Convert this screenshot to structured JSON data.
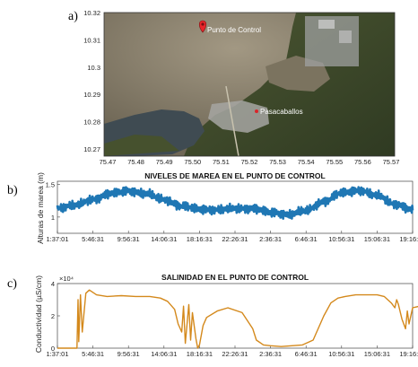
{
  "panel_labels": [
    "a)",
    "b)",
    "c)"
  ],
  "map": {
    "markers": [
      {
        "label": "Punto de Control",
        "lon": 75.511,
        "lat": 10.312,
        "icon": "map-pin-icon",
        "color": "#e8262b"
      },
      {
        "label": "Pasacaballos",
        "lon": 75.527,
        "lat": 10.281,
        "icon": "dot-icon",
        "color": "#d9262b"
      }
    ],
    "x_ticks": [
      "75.47",
      "75.48",
      "75.49",
      "75.50",
      "75.51",
      "75.52",
      "75.53",
      "75.54",
      "75.55",
      "75.56",
      "75.57"
    ],
    "y_ticks": [
      "10.32",
      "10.31",
      "10.3",
      "10.29",
      "10.28",
      "10.27"
    ],
    "colors": {
      "water": "#8a7f6a",
      "land": "#3f4a2c",
      "urban": "#9fa0a0"
    }
  },
  "chart_data": [
    {
      "type": "line",
      "title": "NIVELES DE MAREA EN EL PUNTO DE CONTROL",
      "ylabel": "Alturas de marea (m)",
      "x_ticks": [
        "1:37:01",
        "5:46:31",
        "9:56:31",
        "14:06:31",
        "18:16:31",
        "22:26:31",
        "2:36:31",
        "6:46:31",
        "10:56:31",
        "15:06:31",
        "19:16:31"
      ],
      "y_ticks": [
        "1",
        "1.5"
      ],
      "ylim": [
        0.75,
        1.55
      ],
      "color": "#1f77b4",
      "series": [
        {
          "x": [
            0,
            0.5,
            1,
            1.5,
            2,
            2.5,
            3,
            3.5,
            4,
            4.5,
            5,
            5.5,
            6,
            6.5,
            7,
            7.5,
            8,
            8.5,
            9,
            9.5,
            10,
            10.5,
            11
          ],
          "values": [
            1.14,
            1.18,
            1.27,
            1.36,
            1.4,
            1.36,
            1.27,
            1.17,
            1.12,
            1.11,
            1.13,
            1.13,
            1.07,
            1.04,
            1.1,
            1.24,
            1.37,
            1.41,
            1.33,
            1.2,
            1.11,
            1.09,
            1.12
          ]
        }
      ]
    },
    {
      "type": "line",
      "title": "SALINIDAD EN EL PUNTO DE CONTROL",
      "ylabel": "Conductividad (µS/cm)",
      "y_multiplier": "×10⁴",
      "x_ticks": [
        "1:37:01",
        "5:46:31",
        "9:56:31",
        "14:06:31",
        "18:16:31",
        "22:26:31",
        "2:36:31",
        "6:46:31",
        "10:56:31",
        "15:06:31",
        "19:16:31"
      ],
      "y_ticks": [
        "0",
        "2",
        "4"
      ],
      "ylim": [
        0,
        4
      ],
      "color": "#d4891c",
      "series": [
        {
          "x": [
            0,
            0.3,
            0.55,
            0.58,
            0.6,
            0.65,
            0.7,
            0.8,
            0.9,
            1.1,
            1.4,
            1.8,
            2.2,
            2.6,
            2.9,
            3.1,
            3.3,
            3.4,
            3.5,
            3.55,
            3.6,
            3.7,
            3.75,
            3.8,
            3.9,
            3.95,
            4.0,
            4.1,
            4.2,
            4.5,
            4.8,
            5.2,
            5.5,
            5.6,
            5.8,
            6.0,
            6.3,
            6.6,
            6.9,
            7.2,
            7.5,
            7.7,
            7.9,
            8.1,
            8.4,
            8.7,
            9.0,
            9.2,
            9.4,
            9.5,
            9.55,
            9.6,
            9.7,
            9.8,
            9.85,
            9.9,
            10.0,
            10.2,
            10.4,
            10.6,
            10.8,
            11.0
          ],
          "values": [
            0.0,
            0.0,
            0.0,
            3.0,
            0.4,
            3.3,
            1.0,
            3.4,
            3.6,
            3.3,
            3.2,
            3.25,
            3.2,
            3.2,
            3.1,
            2.9,
            2.4,
            1.5,
            1.0,
            2.6,
            0.3,
            2.7,
            0.5,
            2.2,
            0.6,
            0.0,
            0.2,
            1.4,
            1.9,
            2.3,
            2.5,
            2.2,
            1.2,
            0.5,
            0.2,
            0.15,
            0.1,
            0.15,
            0.2,
            0.5,
            2.0,
            2.8,
            3.1,
            3.2,
            3.3,
            3.3,
            3.3,
            3.2,
            2.8,
            2.5,
            3.0,
            2.7,
            1.8,
            1.2,
            2.3,
            1.5,
            2.5,
            2.6,
            2.7,
            2.8,
            2.85,
            2.8
          ]
        }
      ]
    }
  ]
}
